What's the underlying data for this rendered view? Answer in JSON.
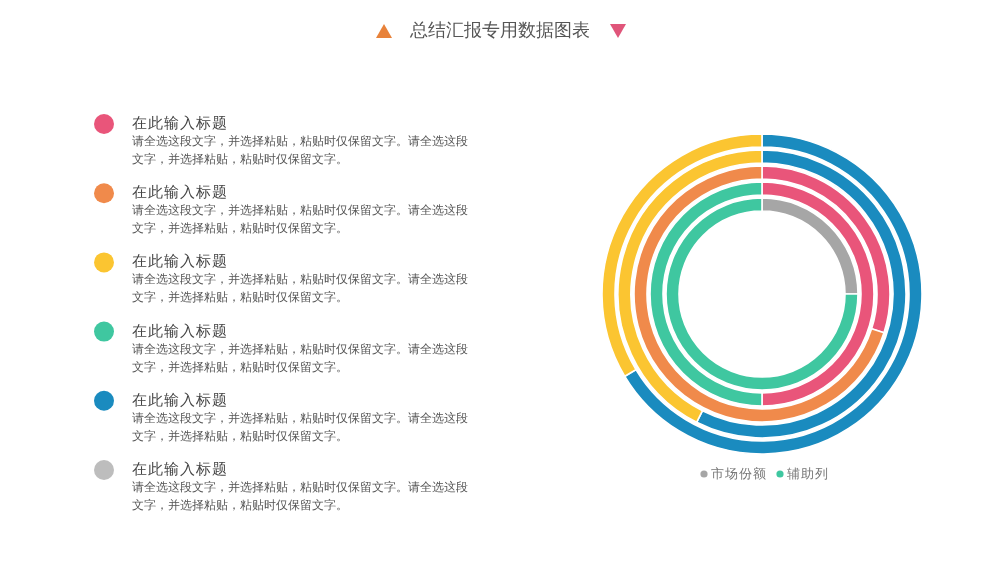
{
  "chart_data": [
    {
      "type": "other",
      "title": "总结汇报专用数据图表",
      "colors": [
        "#e9557a",
        "#f08a4b",
        "#fbc531",
        "#3fc7a0",
        "#1a8bbf",
        "#bdbdbd"
      ],
      "annotations": [
        "在此输入标题",
        "请全选这段文字，并选择粘贴，粘贴时仅保留文字。请全选这段文字，并选择粘贴，粘贴时仅保留文字。",
        "在此输入标题",
        "请全选这段文字，并选择粘贴，粘贴时仅保留文字。请全选这段文字，并选择粘贴，粘贴时仅保留文字。",
        "在此输入标题",
        "请全选这段文字，并选择粘贴，粘贴时仅保留文字。请全选这段文字，并选择粘贴，粘贴时仅保留文字。",
        "在此输入标题",
        "请全选这段文字，并选择粘贴，粘贴时仅保留文字。请全选这段文字，并选择粘贴，粘贴时仅保留文字。",
        "在此输入标题",
        "请全选这段文字，并选择粘贴，粘贴时仅保留文字。请全选这段文字，并选择粘贴，粘贴时仅保留文字。",
        "在此输入标题",
        "请全选这段文字，并选择粘贴，粘贴时仅保留文字。请全选这段文字，并选择粘贴，粘贴时仅保留文字。"
      ]
    },
    {
      "type": "donut",
      "categories": [
        "市场份额",
        "辅助列"
      ],
      "legend": "bottom",
      "series": [
        {
          "values": [
            25,
            75
          ],
          "colors": [
            "#a6a6a6",
            "#3fc7a0"
          ]
        },
        {
          "values": [
            50,
            50
          ],
          "colors": [
            "#e9557a",
            "#3fc7a0"
          ]
        },
        {
          "values": [
            29.9,
            70.1
          ],
          "colors": [
            "#e9557a",
            "#f08a4b"
          ]
        },
        {
          "values": [
            57.5,
            42.5
          ],
          "colors": [
            "#1a8bbf",
            "#fbc531"
          ]
        },
        {
          "values": [
            66.4,
            33.6
          ],
          "colors": [
            "#1a8bbf",
            "#fbc531"
          ]
        }
      ]
    }
  ]
}
